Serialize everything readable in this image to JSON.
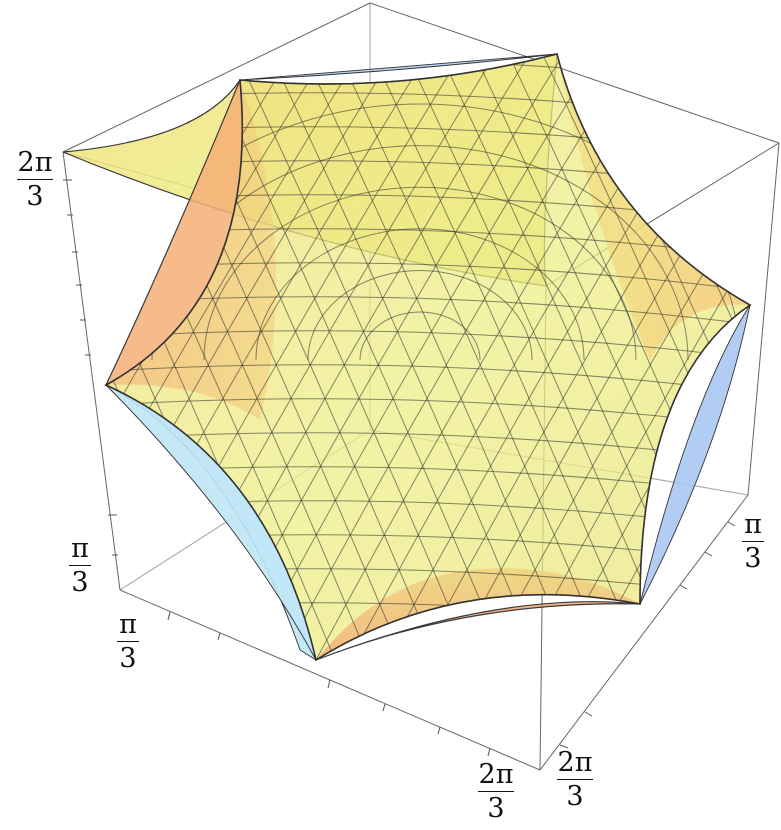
{
  "axes": {
    "z_label": {
      "numerator": "2π",
      "denominator": "3"
    },
    "y_left_low": {
      "numerator": "π",
      "denominator": "3"
    },
    "x_low": {
      "numerator": "π",
      "denominator": "3"
    },
    "y_right_low": {
      "numerator": "π",
      "denominator": "3"
    },
    "x_bottom": {
      "numerator": "2π",
      "denominator": "3"
    },
    "y_bottom": {
      "numerator": "2π",
      "denominator": "3"
    }
  },
  "colors": {
    "surface_top": "#f3e97a",
    "surface_side": "#f4b27a",
    "surface_blue": "#a9c8f2",
    "surface_cyan": "#bfe6f6",
    "mesh": "#2b2b2b",
    "box": "#555555"
  }
}
